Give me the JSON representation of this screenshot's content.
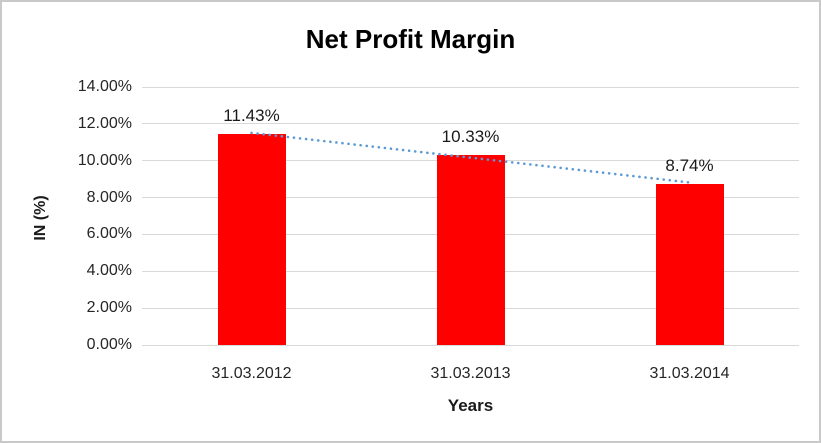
{
  "frame": {
    "background_color": "#ffffff",
    "border_color": "#c9c9c9"
  },
  "chart_data": {
    "type": "bar",
    "title": "Net Profit Margin",
    "xlabel": "Years",
    "ylabel": "IN (%)",
    "categories": [
      "31.03.2012",
      "31.03.2013",
      "31.03.2014"
    ],
    "values": [
      11.43,
      10.33,
      8.74
    ],
    "data_labels": [
      "11.43%",
      "10.33%",
      "8.74%"
    ],
    "ylim": [
      0,
      14
    ],
    "ytick_step": 2,
    "ytick_labels": [
      "0.00%",
      "2.00%",
      "4.00%",
      "6.00%",
      "8.00%",
      "10.00%",
      "12.00%",
      "14.00%"
    ],
    "grid": true,
    "legend_position": "none",
    "bar_color": "#ff0000",
    "gridline_color": "#d9d9d9",
    "trendline": {
      "style": "dotted",
      "color": "#5b9bd5",
      "start_value": 11.51,
      "end_value": 8.82
    }
  }
}
